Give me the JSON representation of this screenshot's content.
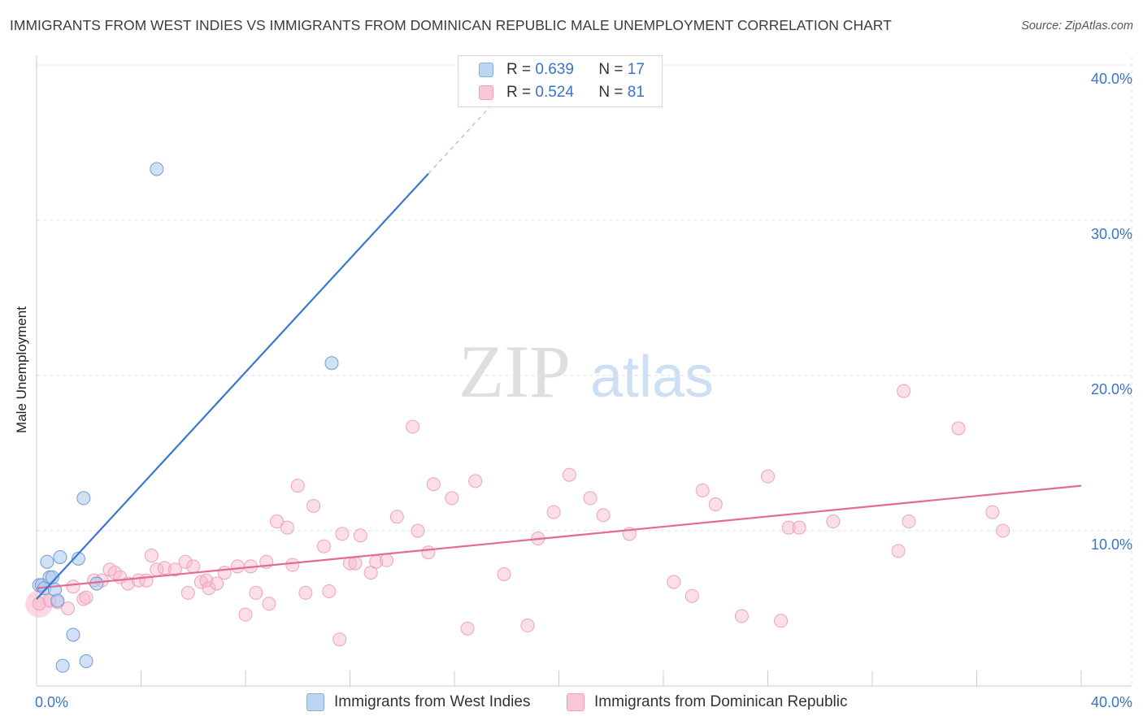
{
  "title": "IMMIGRANTS FROM WEST INDIES VS IMMIGRANTS FROM DOMINICAN REPUBLIC MALE UNEMPLOYMENT CORRELATION CHART",
  "source": "Source: ZipAtlas.com",
  "watermark": {
    "zip": "ZIP",
    "atlas": "atlas"
  },
  "legend": {
    "r_label": "R =",
    "n_label": "N =",
    "items": [
      {
        "name": "Immigrants from West Indies",
        "r": "0.639",
        "n": "17"
      },
      {
        "name": "Immigrants from Dominican Republic",
        "r": "0.524",
        "n": "81"
      }
    ]
  },
  "chart_data": {
    "type": "scatter",
    "title": "IMMIGRANTS FROM WEST INDIES VS IMMIGRANTS FROM DOMINICAN REPUBLIC MALE UNEMPLOYMENT CORRELATION CHART",
    "xlabel": "",
    "ylabel": "Male Unemployment",
    "xlim": [
      0,
      40
    ],
    "ylim": [
      0,
      40
    ],
    "x_tick_labels": [
      {
        "value": 0,
        "label": "0.0%"
      },
      {
        "value": 40,
        "label": "40.0%"
      }
    ],
    "y_tick_labels": [
      {
        "value": 10,
        "label": "10.0%"
      },
      {
        "value": 20,
        "label": "20.0%"
      },
      {
        "value": 30,
        "label": "30.0%"
      },
      {
        "value": 40,
        "label": "40.0%"
      }
    ],
    "grid": true,
    "colors": {
      "west_indies": "#a9c9ef",
      "west_indies_line": "#3a78d0",
      "dominican": "#f6b6cb",
      "dominican_line": "#e36b96",
      "tick_label": "#3a73c7"
    },
    "series": [
      {
        "name": "Immigrants from West Indies",
        "r": 0.639,
        "n": 17,
        "trend": {
          "x0": 0.0,
          "y0": 5.6,
          "x1": 15.0,
          "y1": 33.0,
          "dash_to_x": 19.0
        },
        "points": [
          [
            0.1,
            6.5
          ],
          [
            0.2,
            6.5
          ],
          [
            0.3,
            6.3
          ],
          [
            0.4,
            8.0
          ],
          [
            0.5,
            7.0
          ],
          [
            0.6,
            7.0
          ],
          [
            0.7,
            6.2
          ],
          [
            0.8,
            5.5
          ],
          [
            0.9,
            8.3
          ],
          [
            1.0,
            1.3
          ],
          [
            1.4,
            3.3
          ],
          [
            1.6,
            8.2
          ],
          [
            1.8,
            12.1
          ],
          [
            1.9,
            1.6
          ],
          [
            2.3,
            6.6
          ],
          [
            4.6,
            33.3
          ],
          [
            11.3,
            20.8
          ]
        ]
      },
      {
        "name": "Immigrants from Dominican Republic",
        "r": 0.524,
        "n": 81,
        "trend": {
          "x0": 0.0,
          "y0": 6.3,
          "x1": 40.0,
          "y1": 12.9
        },
        "points": [
          [
            0.1,
            5.3
          ],
          [
            0.5,
            5.5
          ],
          [
            0.8,
            5.4
          ],
          [
            1.2,
            5.0
          ],
          [
            1.4,
            6.4
          ],
          [
            1.8,
            5.6
          ],
          [
            1.9,
            5.7
          ],
          [
            2.2,
            6.8
          ],
          [
            2.5,
            6.8
          ],
          [
            2.8,
            7.5
          ],
          [
            3.0,
            7.3
          ],
          [
            3.2,
            7.0
          ],
          [
            3.5,
            6.6
          ],
          [
            3.9,
            6.8
          ],
          [
            4.2,
            6.8
          ],
          [
            4.4,
            8.4
          ],
          [
            4.6,
            7.5
          ],
          [
            4.9,
            7.6
          ],
          [
            5.3,
            7.5
          ],
          [
            5.7,
            8.0
          ],
          [
            5.8,
            6.0
          ],
          [
            6.0,
            7.7
          ],
          [
            6.3,
            6.7
          ],
          [
            6.5,
            6.8
          ],
          [
            6.6,
            6.3
          ],
          [
            6.9,
            6.6
          ],
          [
            7.2,
            7.3
          ],
          [
            7.7,
            7.7
          ],
          [
            8.0,
            4.6
          ],
          [
            8.2,
            7.7
          ],
          [
            8.4,
            6.0
          ],
          [
            8.8,
            8.0
          ],
          [
            8.9,
            5.3
          ],
          [
            9.2,
            10.6
          ],
          [
            9.6,
            10.2
          ],
          [
            9.8,
            7.8
          ],
          [
            10.0,
            12.9
          ],
          [
            10.3,
            6.0
          ],
          [
            10.6,
            11.6
          ],
          [
            11.0,
            9.0
          ],
          [
            11.2,
            6.1
          ],
          [
            11.6,
            3.0
          ],
          [
            11.7,
            9.8
          ],
          [
            12.0,
            7.9
          ],
          [
            12.2,
            7.9
          ],
          [
            12.4,
            9.7
          ],
          [
            12.8,
            7.3
          ],
          [
            13.0,
            8.0
          ],
          [
            13.4,
            8.1
          ],
          [
            13.8,
            10.9
          ],
          [
            14.4,
            16.7
          ],
          [
            14.6,
            10.0
          ],
          [
            15.0,
            8.6
          ],
          [
            15.2,
            13.0
          ],
          [
            15.9,
            12.1
          ],
          [
            16.5,
            3.7
          ],
          [
            16.8,
            13.2
          ],
          [
            17.9,
            7.2
          ],
          [
            18.8,
            3.9
          ],
          [
            19.2,
            9.5
          ],
          [
            19.8,
            11.2
          ],
          [
            20.4,
            13.6
          ],
          [
            21.2,
            12.1
          ],
          [
            21.7,
            11.0
          ],
          [
            22.7,
            9.8
          ],
          [
            24.4,
            6.7
          ],
          [
            25.1,
            5.8
          ],
          [
            25.5,
            12.6
          ],
          [
            26.0,
            11.7
          ],
          [
            27.0,
            4.5
          ],
          [
            28.0,
            13.5
          ],
          [
            28.5,
            4.2
          ],
          [
            28.8,
            10.2
          ],
          [
            29.2,
            10.2
          ],
          [
            30.5,
            10.6
          ],
          [
            33.0,
            8.7
          ],
          [
            33.2,
            19.0
          ],
          [
            33.4,
            10.6
          ],
          [
            35.3,
            16.6
          ],
          [
            36.6,
            11.2
          ],
          [
            37.0,
            10.0
          ]
        ]
      }
    ]
  }
}
